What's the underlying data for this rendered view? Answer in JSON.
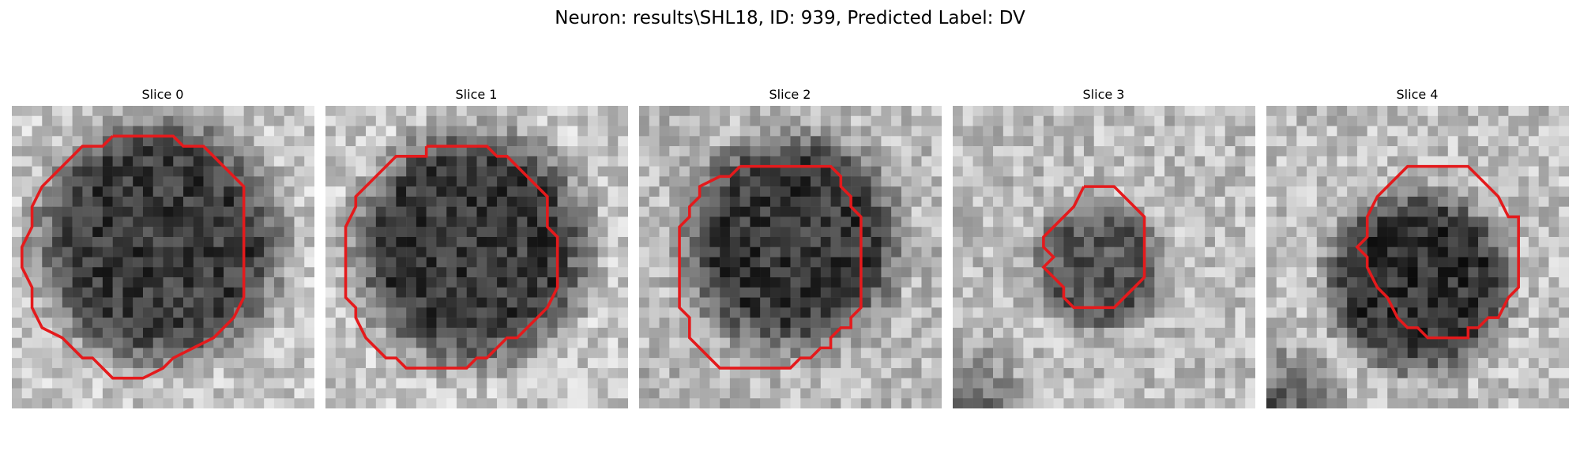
{
  "figure": {
    "title": "Neuron: results\\SHL18, ID: 939, Predicted Label: DV"
  },
  "panels": [
    {
      "title": "Slice 0",
      "image": "grayscale-microscopy-crop",
      "outline_color": "#e41a1c"
    },
    {
      "title": "Slice 1",
      "image": "grayscale-microscopy-crop",
      "outline_color": "#e41a1c"
    },
    {
      "title": "Slice 2",
      "image": "grayscale-microscopy-crop",
      "outline_color": "#e41a1c"
    },
    {
      "title": "Slice 3",
      "image": "grayscale-microscopy-crop",
      "outline_color": "#e41a1c"
    },
    {
      "title": "Slice 4",
      "image": "grayscale-microscopy-crop",
      "outline_color": "#e41a1c"
    }
  ]
}
